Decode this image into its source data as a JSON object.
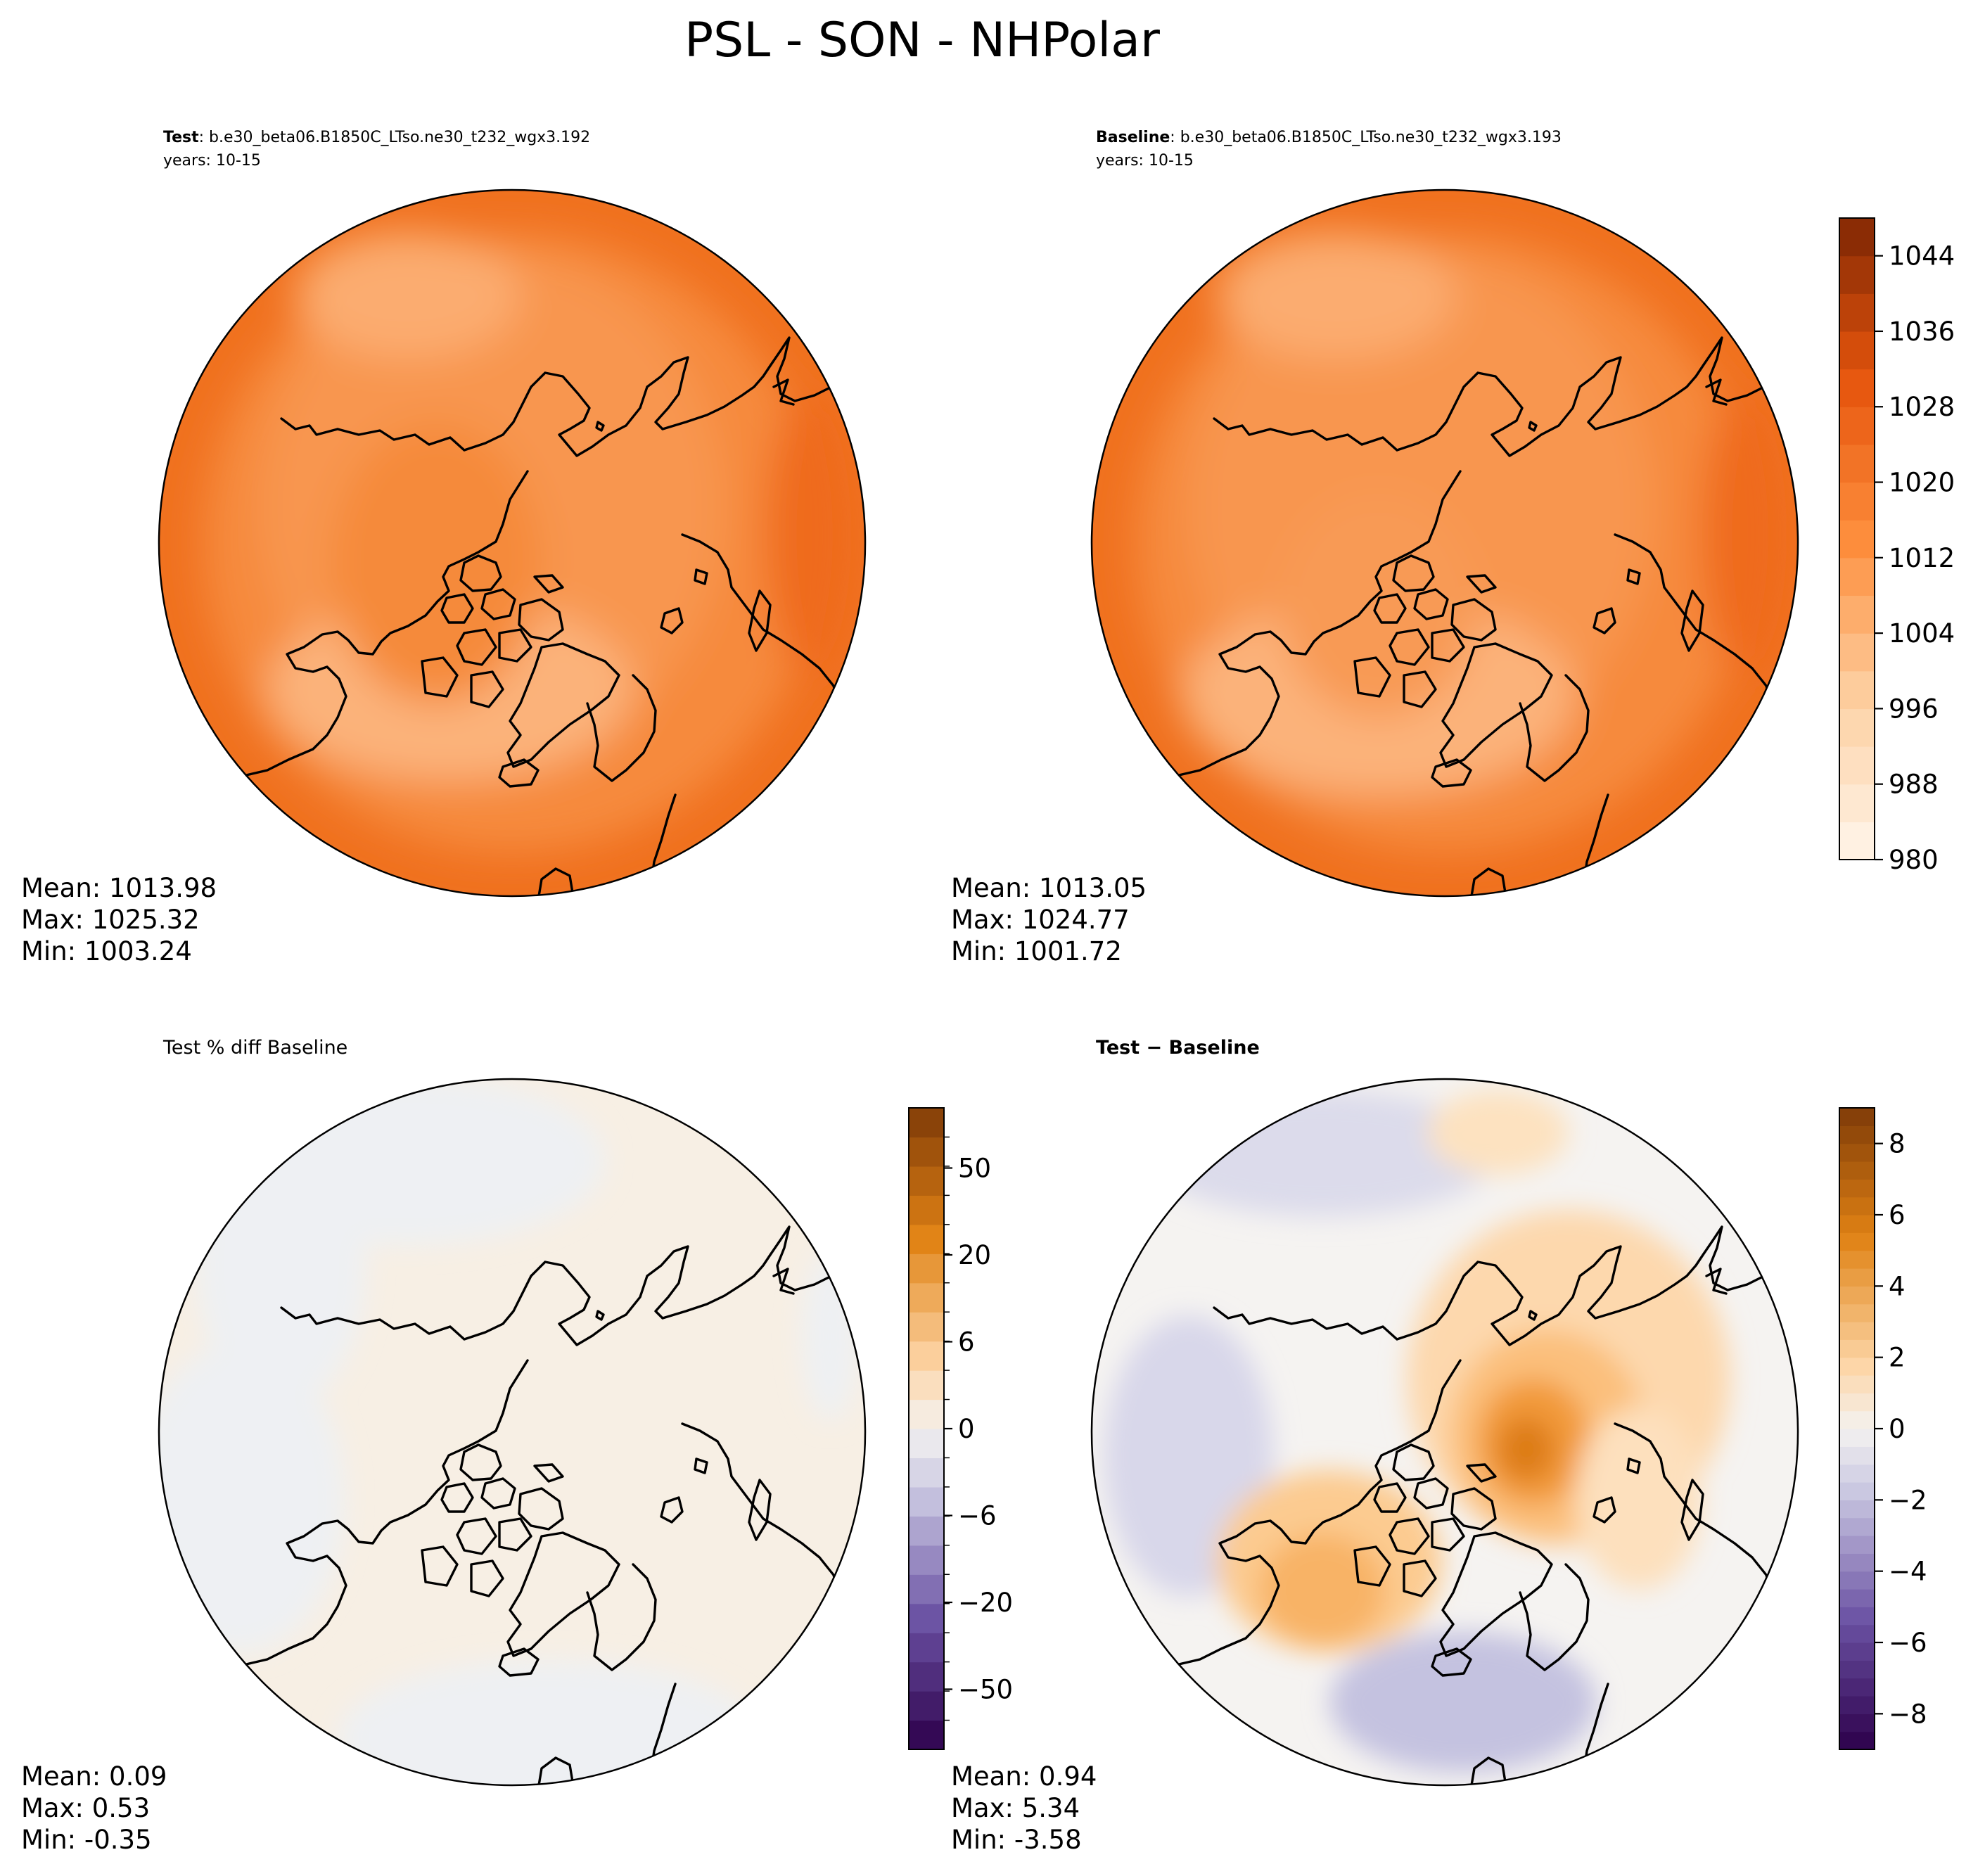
{
  "figure": {
    "title": "PSL - SON - NHPolar"
  },
  "panels": {
    "test": {
      "label_bold": "Test",
      "label_rest": ": b.e30_beta06.B1850C_LTso.ne30_t232_wgx3.192",
      "years": "years: 10-15",
      "stats": {
        "mean": "Mean: 1013.98",
        "max": "Max: 1025.32",
        "min": "Min: 1003.24"
      }
    },
    "baseline": {
      "label_bold": "Baseline",
      "label_rest": ": b.e30_beta06.B1850C_LTso.ne30_t232_wgx3.193",
      "years": "years: 10-15",
      "stats": {
        "mean": "Mean: 1013.05",
        "max": "Max: 1024.77",
        "min": "Min: 1001.72"
      }
    },
    "pctdiff": {
      "title": "Test % diff Baseline",
      "stats": {
        "mean": "Mean:  0.09",
        "max": "Max:  0.53",
        "min": "Min: -0.35"
      }
    },
    "diff": {
      "title": "Test − Baseline",
      "stats": {
        "mean": "Mean:  0.94",
        "max": "Max:  5.34",
        "min": "Min: -3.58"
      }
    }
  },
  "chart_data": [
    {
      "type": "heatmap",
      "name": "test",
      "projection": "north-polar-stereographic",
      "variable": "PSL",
      "season": "SON",
      "colormap": "Oranges",
      "zlim": [
        980,
        1048
      ],
      "summary": {
        "mean": 1013.98,
        "max": 1025.32,
        "min": 1003.24
      }
    },
    {
      "type": "heatmap",
      "name": "baseline",
      "projection": "north-polar-stereographic",
      "variable": "PSL",
      "season": "SON",
      "colormap": "Oranges",
      "zlim": [
        980,
        1048
      ],
      "colorbar_ticks": [
        "980",
        "988",
        "996",
        "1004",
        "1012",
        "1020",
        "1028",
        "1036",
        "1044"
      ],
      "summary": {
        "mean": 1013.05,
        "max": 1024.77,
        "min": 1001.72
      }
    },
    {
      "type": "heatmap",
      "name": "pct-diff",
      "projection": "north-polar-stereographic",
      "colormap": "PuOr_r",
      "zlim": [
        -100,
        100
      ],
      "colorbar_ticks": [
        "50",
        "20",
        "6",
        "0",
        "−6",
        "−20",
        "−50"
      ],
      "summary": {
        "mean": 0.09,
        "max": 0.53,
        "min": -0.35
      }
    },
    {
      "type": "heatmap",
      "name": "diff",
      "projection": "north-polar-stereographic",
      "colormap": "PuOr_r",
      "zlim": [
        -9,
        9
      ],
      "colorbar_ticks": [
        "8",
        "6",
        "4",
        "2",
        "0",
        "−2",
        "−4",
        "−6",
        "−8"
      ],
      "summary": {
        "mean": 0.94,
        "max": 5.34,
        "min": -3.58
      }
    }
  ]
}
